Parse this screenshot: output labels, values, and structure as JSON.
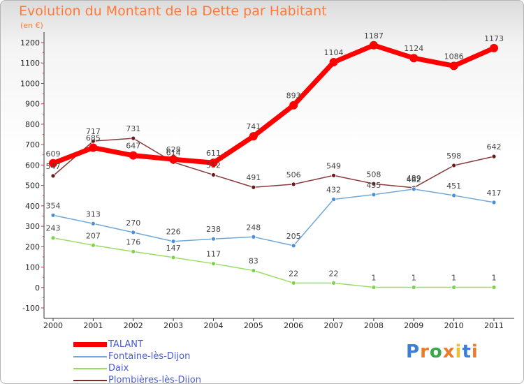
{
  "chart_data": {
    "type": "line",
    "title": "Evolution du Montant de la Dette par Habitant",
    "subtitle": "(en €)",
    "x": [
      "2000",
      "2001",
      "2002",
      "2003",
      "2004",
      "2005",
      "2006",
      "2007",
      "2008",
      "2009",
      "2010",
      "2011"
    ],
    "ylim": [
      -100,
      1200
    ],
    "yticks": [
      "-100",
      "0",
      "100",
      "200",
      "300",
      "400",
      "500",
      "600",
      "700",
      "800",
      "900",
      "1000",
      "1100",
      "1200"
    ],
    "grid": false,
    "legend_position": "bottom-left",
    "series": [
      {
        "name": "TALANT",
        "color": "#ff0000",
        "values": [
          609,
          685,
          647,
          628,
          611,
          741,
          893,
          1104,
          1187,
          1124,
          1086,
          1173
        ]
      },
      {
        "name": "Fontaine-lès-Dijon",
        "color": "#6fa8d8",
        "values": [
          354,
          313,
          270,
          226,
          238,
          248,
          205,
          432,
          455,
          482,
          451,
          417
        ]
      },
      {
        "name": "Daix",
        "color": "#99dd66",
        "values": [
          243,
          207,
          176,
          147,
          117,
          83,
          22,
          22,
          1,
          1,
          1,
          1
        ]
      },
      {
        "name": "Plombières-lès-Dijon",
        "color": "#7a2a2a",
        "values": [
          547,
          717,
          731,
          614,
          552,
          491,
          506,
          549,
          508,
          489,
          598,
          642
        ]
      }
    ]
  },
  "logo": {
    "letters": [
      "P",
      "r",
      "o",
      "x",
      "i",
      "t",
      "i"
    ],
    "colors": [
      "#3a7fd5",
      "#ef7b2a",
      "#3aa84a",
      "#ef7b2a",
      "#e8c232",
      "#3a7fd5",
      "#ef7b2a"
    ]
  }
}
